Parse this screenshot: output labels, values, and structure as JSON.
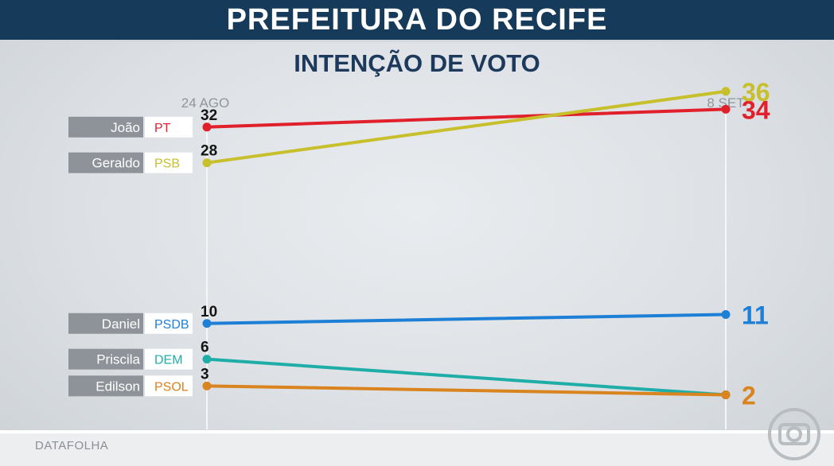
{
  "header": {
    "title": "PREFEITURA DO RECIFE"
  },
  "subtitle": "INTENÇÃO DE VOTO",
  "source": "DATAFOLHA",
  "chart_data": {
    "type": "line",
    "x": [
      "24 AGO",
      "8 SET"
    ],
    "ylim": [
      0,
      40
    ],
    "grid": false,
    "series": [
      {
        "name": "João",
        "party": "PT",
        "color": "#e0202a",
        "values": [
          32,
          34
        ]
      },
      {
        "name": "Geraldo",
        "party": "PSB",
        "color": "#c7c02c",
        "values": [
          28,
          36
        ]
      },
      {
        "name": "Daniel",
        "party": "PSDB",
        "color": "#1e7fd6",
        "values": [
          10,
          11
        ]
      },
      {
        "name": "Priscila",
        "party": "DEM",
        "color": "#1fada7",
        "values": [
          6,
          2
        ]
      },
      {
        "name": "Edilson",
        "party": "PSOL",
        "color": "#d9841e",
        "values": [
          3,
          2
        ]
      }
    ]
  }
}
